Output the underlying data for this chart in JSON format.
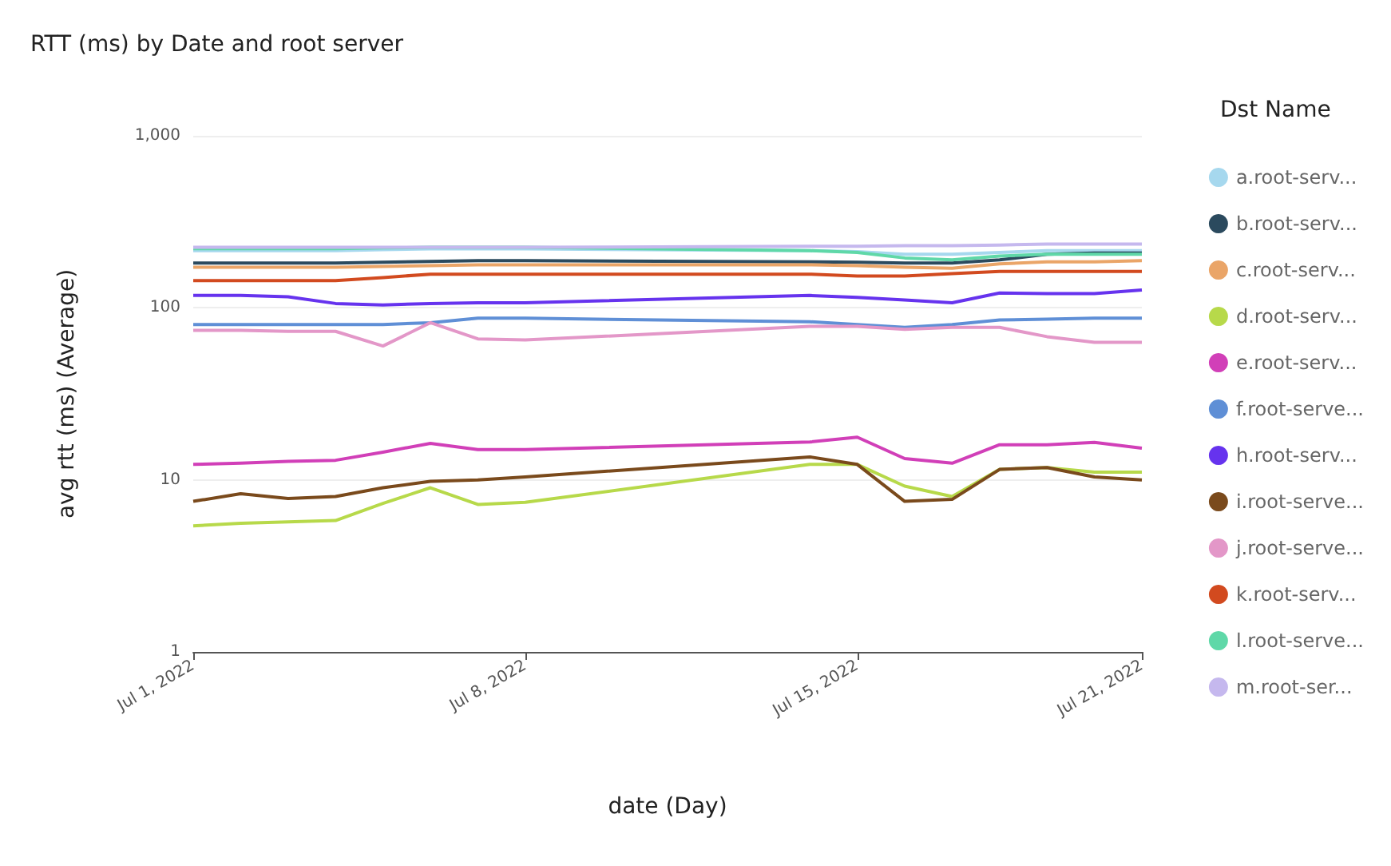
{
  "chart_data": {
    "type": "line",
    "title": "RTT (ms) by Date and root server",
    "xlabel": "date (Day)",
    "ylabel": "avg rtt (ms) (Average)",
    "legend_title": "Dst Name",
    "legend": "right",
    "grid": "y",
    "log": "y",
    "marker": "none",
    "line_style": "solid",
    "x": [
      "2022-07-01",
      "2022-07-02",
      "2022-07-03",
      "2022-07-04",
      "2022-07-05",
      "2022-07-06",
      "2022-07-07",
      "2022-07-08",
      "2022-07-14",
      "2022-07-15",
      "2022-07-16",
      "2022-07-17",
      "2022-07-18",
      "2022-07-19",
      "2022-07-20",
      "2022-07-21"
    ],
    "xlim": [
      "2022-07-01",
      "2022-07-21"
    ],
    "xticks": [
      {
        "value": "2022-07-01",
        "label": "Jul 1, 2022"
      },
      {
        "value": "2022-07-08",
        "label": "Jul 8, 2022"
      },
      {
        "value": "2022-07-15",
        "label": "Jul 15, 2022"
      },
      {
        "value": "2022-07-21",
        "label": "Jul 21, 2022"
      }
    ],
    "ylim": [
      1,
      1000
    ],
    "yticks": [
      1,
      10,
      100,
      {
        "value": 1000,
        "label": "1,000"
      }
    ],
    "series": [
      {
        "name": "a.root-serv...",
        "color": "#a6d8ee",
        "values": [
          215,
          215,
          215,
          215,
          218,
          220,
          220,
          220,
          215,
          212,
          205,
          205,
          210,
          215,
          215,
          215
        ]
      },
      {
        "name": "b.root-serv...",
        "color": "#2b4a5e",
        "values": [
          182,
          182,
          182,
          182,
          184,
          186,
          188,
          188,
          185,
          184,
          182,
          182,
          190,
          205,
          208,
          208
        ]
      },
      {
        "name": "c.root-serv...",
        "color": "#eaa568",
        "values": [
          172,
          172,
          172,
          172,
          174,
          176,
          178,
          178,
          178,
          176,
          172,
          170,
          180,
          185,
          185,
          188
        ]
      },
      {
        "name": "d.root-serv...",
        "color": "#b7d94a",
        "values": [
          5.4,
          5.6,
          5.7,
          5.8,
          7.3,
          9.0,
          7.2,
          7.4,
          12.3,
          12.3,
          9.2,
          8.0,
          11.5,
          11.8,
          11.1,
          11.1
        ]
      },
      {
        "name": "e.root-serv...",
        "color": "#d13fb8",
        "values": [
          12.3,
          12.5,
          12.8,
          13.0,
          14.5,
          16.3,
          15.0,
          15.0,
          16.6,
          17.7,
          13.3,
          12.5,
          16.0,
          16.0,
          16.5,
          15.3
        ]
      },
      {
        "name": "f.root-serve...",
        "color": "#5f8fd6",
        "values": [
          80,
          80,
          80,
          80,
          80,
          82,
          87,
          87,
          83,
          80,
          77,
          80,
          85,
          86,
          87,
          87
        ]
      },
      {
        "name": "h.root-serv...",
        "color": "#6633ee",
        "values": [
          118,
          118,
          116,
          106,
          104,
          106,
          107,
          107,
          118,
          115,
          111,
          107,
          122,
          121,
          121,
          127
        ]
      },
      {
        "name": "i.root-serve...",
        "color": "#7a4a1c",
        "values": [
          7.5,
          8.3,
          7.8,
          8.0,
          9.0,
          9.8,
          10.0,
          10.4,
          13.6,
          12.3,
          7.5,
          7.7,
          11.5,
          11.8,
          10.4,
          10.0
        ]
      },
      {
        "name": "j.root-serve...",
        "color": "#e397c8",
        "values": [
          74,
          74,
          73,
          73,
          60,
          82,
          66,
          65,
          78,
          78,
          75,
          77,
          77,
          68,
          63,
          63
        ]
      },
      {
        "name": "k.root-serv...",
        "color": "#d24a1f",
        "values": [
          144,
          144,
          144,
          144,
          150,
          157,
          157,
          157,
          157,
          153,
          153,
          158,
          163,
          163,
          163,
          163
        ]
      },
      {
        "name": "l.root-serve...",
        "color": "#5fd8a8",
        "values": [
          221,
          221,
          221,
          221,
          223,
          225,
          225,
          225,
          215,
          210,
          195,
          190,
          200,
          205,
          205,
          205
        ]
      },
      {
        "name": "m.root-ser...",
        "color": "#c5b8ee",
        "values": [
          225,
          225,
          225,
          225,
          225,
          225,
          225,
          225,
          228,
          228,
          230,
          230,
          232,
          235,
          235,
          235
        ]
      }
    ]
  }
}
